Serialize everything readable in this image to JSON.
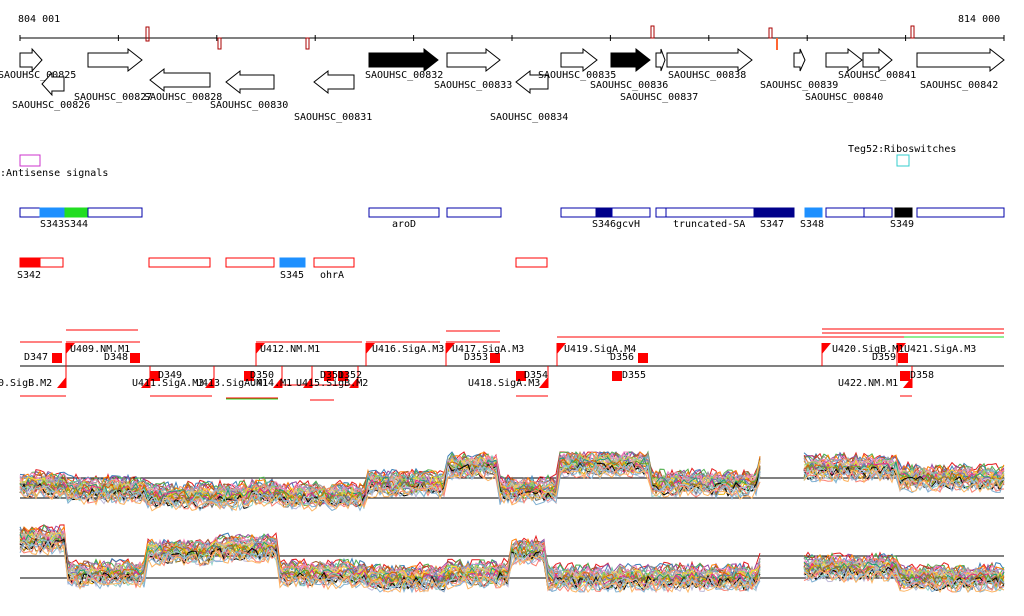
{
  "ruler": {
    "start_label": "804 001",
    "end_label": "814 000"
  },
  "genes": [
    {
      "label": "SAOUHSC_00825",
      "dir": "r",
      "fill": "white"
    },
    {
      "label": "SAOUHSC_00826",
      "dir": "l",
      "fill": "white"
    },
    {
      "label": "SAOUHSC_00827",
      "dir": "r",
      "fill": "white"
    },
    {
      "label": "SAOUHSC_00828",
      "dir": "l",
      "fill": "white"
    },
    {
      "label": "SAOUHSC_00830",
      "dir": "l",
      "fill": "white"
    },
    {
      "label": "SAOUHSC_00831",
      "dir": "l",
      "fill": "white"
    },
    {
      "label": "SAOUHSC_00832",
      "dir": "r",
      "fill": "black"
    },
    {
      "label": "SAOUHSC_00833",
      "dir": "r",
      "fill": "white"
    },
    {
      "label": "SAOUHSC_00834",
      "dir": "l",
      "fill": "white"
    },
    {
      "label": "SAOUHSC_00835",
      "dir": "r",
      "fill": "white"
    },
    {
      "label": "SAOUHSC_00836",
      "dir": "r",
      "fill": "black"
    },
    {
      "label": "SAOUHSC_00837",
      "dir": "r",
      "fill": "white"
    },
    {
      "label": "SAOUHSC_00838",
      "dir": "r",
      "fill": "white"
    },
    {
      "label": "SAOUHSC_00839",
      "dir": "r",
      "fill": "white"
    },
    {
      "label": "SAOUHSC_00840",
      "dir": "r",
      "fill": "white"
    },
    {
      "label": "SAOUHSC_00841",
      "dir": "r",
      "fill": "white"
    },
    {
      "label": "SAOUHSC_00842",
      "dir": "r",
      "fill": "white"
    }
  ],
  "track_labels": {
    "antisense": ":Antisense signals",
    "riboswitch": "Teg52:Riboswitches"
  },
  "segments_top": [
    "S343",
    "S344",
    "aroD",
    "S346",
    "gcvH",
    "truncated-SA",
    "S347",
    "S348",
    "S349"
  ],
  "segments_bottom": [
    "S342",
    "S345",
    "ohrA"
  ],
  "transcripts_upper": [
    "D347",
    "U409.NM.M1",
    "D348",
    "U412.NM.M1",
    "U416.SigA.M3",
    "U417.SigA.M3",
    "D353",
    "U419.SigA.M4",
    "D356",
    "U420.SigB.M1",
    "D359",
    "U421.SigA.M3"
  ],
  "transcripts_lower": [
    "0.SigB.M2",
    "D349",
    "U411.SigA.M3",
    "U413.SigA.M1",
    "U414.M1",
    "U415.SigB.M2",
    "D350",
    "D351",
    "D352",
    "U418.SigA.M3",
    "D354",
    "D355",
    "U422.NM.M1",
    "D358"
  ],
  "colors": {
    "red": "#ff0000",
    "navy": "#00008b",
    "blue": "#0000aa",
    "lightblue": "#1e90ff",
    "green": "#22dd22",
    "magenta": "#cc33cc",
    "cyan": "#33cccc",
    "dark_red": "#aa0000"
  }
}
